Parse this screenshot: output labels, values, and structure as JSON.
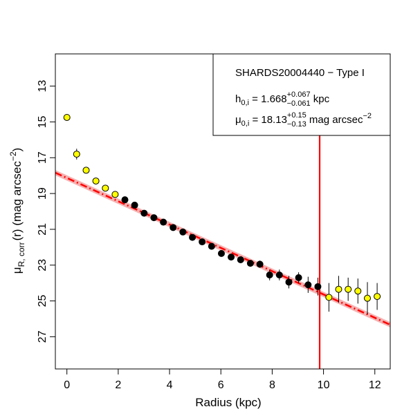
{
  "chart_data": {
    "type": "scatter",
    "title": "",
    "xlabel": "Radius (kpc)",
    "ylabel": {
      "base": "μ",
      "sub": "R, corr",
      "rest": "(r) (mag arcsec",
      "sup": "−2",
      "close": ")"
    },
    "xlim": [
      -0.45,
      12.6
    ],
    "ylim": [
      28.8,
      11.2
    ],
    "y_inverted": true,
    "x_ticks": [
      0,
      2,
      4,
      6,
      8,
      10,
      12
    ],
    "x_tick_labels": [
      "0",
      "2",
      "4",
      "6",
      "8",
      "10",
      "12"
    ],
    "y_ticks": [
      13,
      15,
      17,
      19,
      21,
      23,
      25,
      27
    ],
    "y_tick_labels": [
      "13",
      "15",
      "17",
      "19",
      "21",
      "23",
      "25",
      "27"
    ],
    "grid": false,
    "legend_placement": "top-right",
    "legend": {
      "line1": "SHARDS20004440  − Type I",
      "line2": {
        "lhs": "h",
        "lhs_sub": "0,i",
        "eq": " = 1.668",
        "sup": "+0.067",
        "sub": "−0.061",
        "unit": " kpc"
      },
      "line3": {
        "lhs": "μ",
        "lhs_sub": "0,i",
        "eq": " = 18.13",
        "sup": "+0.15",
        "sub": "−0.13",
        "unit": " mag arcsec",
        "unit_sup": "−2"
      }
    },
    "series": [
      {
        "kind": "excluded",
        "color": "#ffff00",
        "points": [
          {
            "x": 0.0,
            "y": 14.75,
            "err": 0.05
          },
          {
            "x": 0.38,
            "y": 16.8,
            "err": 0.3
          },
          {
            "x": 0.75,
            "y": 17.7,
            "err": 0.08
          },
          {
            "x": 1.13,
            "y": 18.3,
            "err": 0.08
          },
          {
            "x": 1.5,
            "y": 18.7,
            "err": 0.08
          },
          {
            "x": 1.88,
            "y": 19.05,
            "err": 0.1
          },
          {
            "x": 10.21,
            "y": 24.8,
            "err": 0.8
          },
          {
            "x": 10.59,
            "y": 24.35,
            "err": 0.75
          },
          {
            "x": 10.96,
            "y": 24.35,
            "err": 0.65
          },
          {
            "x": 11.34,
            "y": 24.45,
            "err": 0.7
          },
          {
            "x": 11.71,
            "y": 24.85,
            "err": 0.9
          },
          {
            "x": 12.09,
            "y": 24.75,
            "err": 0.75
          }
        ]
      },
      {
        "kind": "fitted",
        "color": "#000000",
        "points": [
          {
            "x": 2.26,
            "y": 19.35,
            "err": 0.1
          },
          {
            "x": 2.64,
            "y": 19.65,
            "err": 0.1
          },
          {
            "x": 3.01,
            "y": 20.1,
            "err": 0.1
          },
          {
            "x": 3.39,
            "y": 20.35,
            "err": 0.1
          },
          {
            "x": 3.76,
            "y": 20.6,
            "err": 0.1
          },
          {
            "x": 4.14,
            "y": 20.9,
            "err": 0.12
          },
          {
            "x": 4.52,
            "y": 21.15,
            "err": 0.12
          },
          {
            "x": 4.89,
            "y": 21.45,
            "err": 0.12
          },
          {
            "x": 5.27,
            "y": 21.7,
            "err": 0.12
          },
          {
            "x": 5.64,
            "y": 21.95,
            "err": 0.12
          },
          {
            "x": 6.02,
            "y": 22.35,
            "err": 0.15
          },
          {
            "x": 6.4,
            "y": 22.55,
            "err": 0.15
          },
          {
            "x": 6.77,
            "y": 22.7,
            "err": 0.18
          },
          {
            "x": 7.15,
            "y": 22.9,
            "err": 0.18
          },
          {
            "x": 7.52,
            "y": 22.95,
            "err": 0.2
          },
          {
            "x": 7.9,
            "y": 23.55,
            "err": 0.3
          },
          {
            "x": 8.28,
            "y": 23.55,
            "err": 0.3
          },
          {
            "x": 8.65,
            "y": 23.95,
            "err": 0.35
          },
          {
            "x": 9.03,
            "y": 23.7,
            "err": 0.3
          },
          {
            "x": 9.4,
            "y": 24.1,
            "err": 0.45
          },
          {
            "x": 9.78,
            "y": 24.2,
            "err": 0.5
          }
        ]
      }
    ],
    "fit": {
      "color": "#ff0000",
      "band_color": "#f4a3a3",
      "mu0": 18.13,
      "h": 1.668,
      "band_halfwidth": 0.15
    },
    "break_line": {
      "x": 9.85,
      "color": "#ff0000"
    }
  }
}
